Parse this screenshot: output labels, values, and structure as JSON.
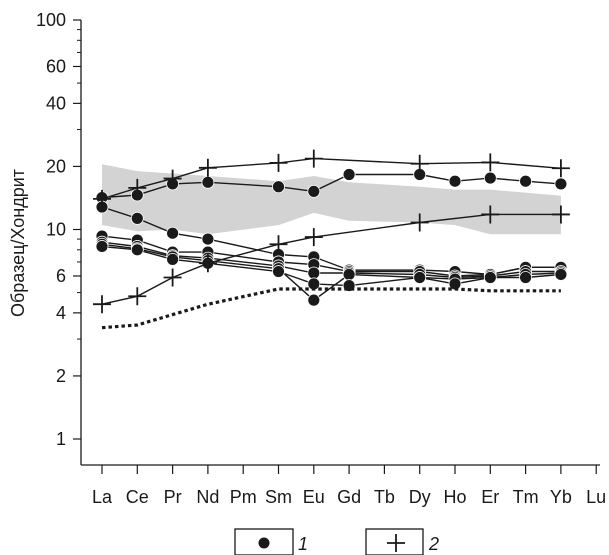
{
  "chart_data": {
    "type": "line",
    "title": "",
    "xlabel": "",
    "ylabel": "Образец/Хондрит",
    "y_scale": "log",
    "ylim": [
      0.6,
      100
    ],
    "y_ticks": [
      1,
      2,
      4,
      6,
      10,
      20,
      40,
      60,
      100
    ],
    "y_tick_labels": [
      "1",
      "2",
      "4",
      "6",
      "10",
      "20",
      "40",
      "60",
      "100"
    ],
    "categories": [
      "La",
      "Ce",
      "Pr",
      "Nd",
      "Pm",
      "Sm",
      "Eu",
      "Gd",
      "Tb",
      "Dy",
      "Ho",
      "Er",
      "Tm",
      "Yb",
      "Lu"
    ],
    "grid": false,
    "legend": {
      "placement": "bottom",
      "entries": [
        {
          "marker": "circle",
          "label": "1"
        },
        {
          "marker": "plus",
          "label": "2"
        }
      ]
    },
    "band": {
      "x": [
        "La",
        "Ce",
        "Pr",
        "Nd",
        "Sm",
        "Eu",
        "Gd",
        "Dy",
        "Ho",
        "Er",
        "Yb"
      ],
      "lower": [
        10.5,
        9.8,
        10.0,
        9.5,
        10.5,
        12.0,
        11.0,
        10.8,
        10.5,
        9.5,
        9.5
      ],
      "upper": [
        20.5,
        19.0,
        18.5,
        18.0,
        17.0,
        18.0,
        16.8,
        16.0,
        15.5,
        15.5,
        14.5
      ],
      "color": "#d3d3d3"
    },
    "series": [
      {
        "marker": "circle",
        "x": [
          "La",
          "Ce",
          "Pr",
          "Nd",
          "Sm",
          "Eu",
          "Gd",
          "Dy",
          "Ho",
          "Er",
          "Tm",
          "Yb"
        ],
        "values": [
          14.2,
          14.6,
          16.5,
          16.8,
          16.0,
          15.2,
          18.3,
          18.3,
          17.0,
          17.6,
          17.0,
          16.5
        ]
      },
      {
        "marker": "circle",
        "x": [
          "La",
          "Ce",
          "Pr",
          "Nd",
          "Sm",
          "Eu",
          "Gd",
          "Dy",
          "Ho",
          "Er",
          "Tm",
          "Yb"
        ],
        "values": [
          12.8,
          11.3,
          9.6,
          9.0,
          7.6,
          7.4,
          6.4,
          6.4,
          6.3,
          6.1,
          6.6,
          6.6
        ]
      },
      {
        "marker": "circle",
        "x": [
          "La",
          "Ce",
          "Pr",
          "Nd",
          "Sm",
          "Eu",
          "Gd",
          "Dy",
          "Ho",
          "Er",
          "Tm",
          "Yb"
        ],
        "values": [
          9.3,
          8.9,
          7.8,
          7.8,
          7.0,
          6.8,
          6.3,
          6.3,
          6.0,
          6.1,
          6.6,
          6.6
        ]
      },
      {
        "marker": "circle",
        "x": [
          "La",
          "Ce",
          "Pr",
          "Nd",
          "Sm",
          "Eu",
          "Gd",
          "Dy",
          "Ho",
          "Er",
          "Tm",
          "Yb"
        ],
        "values": [
          8.7,
          8.3,
          7.5,
          7.3,
          6.7,
          6.2,
          6.2,
          6.1,
          5.9,
          6.0,
          6.3,
          6.3
        ]
      },
      {
        "marker": "circle",
        "x": [
          "La",
          "Ce",
          "Pr",
          "Nd",
          "Sm",
          "Eu",
          "Gd",
          "Dy",
          "Ho",
          "Er",
          "Tm",
          "Yb"
        ],
        "values": [
          8.5,
          8.1,
          7.4,
          7.1,
          6.5,
          4.6,
          6.1,
          5.9,
          5.8,
          5.9,
          6.1,
          6.2
        ]
      },
      {
        "marker": "circle",
        "x": [
          "La",
          "Ce",
          "Pr",
          "Nd",
          "Sm",
          "Eu",
          "Gd",
          "Dy",
          "Ho",
          "Er",
          "Tm",
          "Yb"
        ],
        "values": [
          8.3,
          8.0,
          7.2,
          6.9,
          6.3,
          5.5,
          5.4,
          5.9,
          5.5,
          5.9,
          5.9,
          6.1
        ]
      },
      {
        "marker": "plus",
        "x": [
          "La",
          "Ce",
          "Pr",
          "Nd",
          "Sm",
          "Eu",
          "Dy",
          "Er",
          "Yb"
        ],
        "values": [
          14.0,
          15.8,
          17.5,
          19.7,
          20.8,
          21.8,
          20.6,
          20.9,
          19.6
        ]
      },
      {
        "marker": "plus",
        "x": [
          "La",
          "Ce",
          "Pr",
          "Nd",
          "Sm",
          "Eu",
          "Dy",
          "Er",
          "Yb"
        ],
        "values": [
          4.4,
          4.8,
          5.9,
          6.9,
          8.5,
          9.2,
          10.8,
          11.8,
          11.8
        ]
      },
      {
        "marker": "none",
        "style": "dotted",
        "x": [
          "La",
          "Ce",
          "Nd",
          "Sm",
          "Eu",
          "Gd",
          "Dy",
          "Ho",
          "Er",
          "Yb"
        ],
        "values": [
          3.4,
          3.5,
          4.4,
          5.2,
          5.2,
          5.2,
          5.2,
          5.2,
          5.1,
          5.1
        ]
      }
    ]
  }
}
